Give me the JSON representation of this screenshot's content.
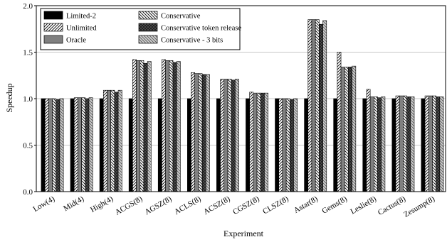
{
  "chart_data": {
    "type": "bar",
    "xlabel": "Experiment",
    "ylabel": "Speedup",
    "ylim": [
      0,
      2.0
    ],
    "yticks": [
      "0.0",
      "0.5",
      "1.0",
      "1.5",
      "2.0"
    ],
    "grid": "horizontal",
    "legend_position": "top-left",
    "categories": [
      "Low(4)",
      "Mid(4)",
      "High(4)",
      "ACGS(8)",
      "AGSZ(8)",
      "ACLS(8)",
      "ACSZ(8)",
      "CGSZ(8)",
      "CLSZ(8)",
      "Astar(8)",
      "Gems(8)",
      "Leslie(8)",
      "Cactus(8)",
      "Zesump(8)"
    ],
    "series": [
      {
        "name": "Limited-2",
        "pattern": "solid-black",
        "values": [
          1.0,
          1.0,
          1.0,
          1.0,
          1.0,
          1.0,
          1.0,
          1.0,
          1.0,
          1.0,
          1.0,
          1.0,
          1.0,
          1.0
        ]
      },
      {
        "name": "Unlimited",
        "pattern": "hatch-diagonal",
        "values": [
          1.0,
          1.01,
          1.09,
          1.42,
          1.42,
          1.28,
          1.21,
          1.07,
          1.0,
          1.85,
          1.5,
          1.1,
          1.03,
          1.03
        ]
      },
      {
        "name": "Oracle",
        "pattern": "solid-gray",
        "values": [
          1.0,
          1.01,
          1.09,
          1.41,
          1.41,
          1.27,
          1.21,
          1.06,
          1.0,
          1.85,
          1.34,
          1.02,
          1.03,
          1.03
        ]
      },
      {
        "name": "Conservative",
        "pattern": "hatch-back-diagonal",
        "values": [
          1.0,
          1.01,
          1.09,
          1.41,
          1.41,
          1.27,
          1.21,
          1.06,
          1.0,
          1.85,
          1.34,
          1.02,
          1.03,
          1.03
        ]
      },
      {
        "name": "Conservative token release",
        "pattern": "crosshatch-dark",
        "values": [
          0.99,
          1.0,
          1.07,
          1.38,
          1.39,
          1.26,
          1.2,
          1.06,
          0.99,
          1.8,
          1.34,
          1.01,
          1.02,
          1.02
        ]
      },
      {
        "name": "Conservative - 3 bits",
        "pattern": "hatch-gray",
        "values": [
          1.0,
          1.01,
          1.09,
          1.4,
          1.4,
          1.26,
          1.21,
          1.06,
          1.0,
          1.84,
          1.35,
          1.02,
          1.02,
          1.02
        ]
      }
    ]
  }
}
